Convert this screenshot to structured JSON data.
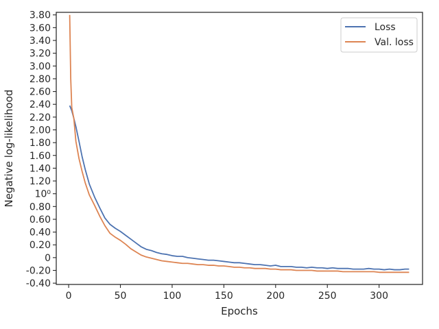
{
  "chart_data": {
    "type": "line",
    "xlabel": "Epochs",
    "ylabel": "Negative log-likelihood",
    "xlim": [
      -12,
      342
    ],
    "ylim": [
      -0.42,
      3.84
    ],
    "x_ticks": [
      {
        "value": 0,
        "label": "0"
      },
      {
        "value": 50,
        "label": "50"
      },
      {
        "value": 100,
        "label": "100"
      },
      {
        "value": 150,
        "label": "150"
      },
      {
        "value": 200,
        "label": "200"
      },
      {
        "value": 250,
        "label": "250"
      },
      {
        "value": 300,
        "label": "300"
      }
    ],
    "y_ticks": [
      {
        "value": -0.4,
        "label": "-0.40"
      },
      {
        "value": -0.2,
        "label": "-0.20"
      },
      {
        "value": 0.0,
        "label": "0"
      },
      {
        "value": 0.2,
        "label": "0.20"
      },
      {
        "value": 0.4,
        "label": "0.40"
      },
      {
        "value": 0.6,
        "label": "0.60"
      },
      {
        "value": 0.8,
        "label": "0.80"
      },
      {
        "value": 1.0,
        "label": "10⁰"
      },
      {
        "value": 1.2,
        "label": "1.20"
      },
      {
        "value": 1.4,
        "label": "1.40"
      },
      {
        "value": 1.6,
        "label": "1.60"
      },
      {
        "value": 1.8,
        "label": "1.80"
      },
      {
        "value": 2.0,
        "label": "2.00"
      },
      {
        "value": 2.2,
        "label": "2.20"
      },
      {
        "value": 2.4,
        "label": "2.40"
      },
      {
        "value": 2.6,
        "label": "2.60"
      },
      {
        "value": 2.8,
        "label": "2.80"
      },
      {
        "value": 3.0,
        "label": "3.00"
      },
      {
        "value": 3.2,
        "label": "3.20"
      },
      {
        "value": 3.4,
        "label": "3.40"
      },
      {
        "value": 3.6,
        "label": "3.60"
      },
      {
        "value": 3.8,
        "label": "3.80"
      }
    ],
    "grid": false,
    "legend_position": "top-right",
    "series": [
      {
        "name": "Loss",
        "color": "#4c72b0",
        "x": [
          1,
          3,
          5,
          7,
          10,
          13,
          16,
          20,
          25,
          30,
          35,
          40,
          45,
          50,
          55,
          60,
          65,
          70,
          75,
          80,
          85,
          90,
          95,
          100,
          105,
          110,
          115,
          120,
          125,
          130,
          135,
          140,
          145,
          150,
          155,
          160,
          165,
          170,
          175,
          180,
          185,
          190,
          195,
          200,
          205,
          210,
          215,
          220,
          225,
          230,
          235,
          240,
          245,
          250,
          255,
          260,
          265,
          270,
          275,
          280,
          285,
          290,
          295,
          300,
          305,
          310,
          315,
          320,
          325,
          329
        ],
        "y": [
          2.38,
          2.3,
          2.18,
          2.05,
          1.82,
          1.58,
          1.38,
          1.15,
          0.95,
          0.78,
          0.62,
          0.52,
          0.46,
          0.41,
          0.35,
          0.29,
          0.23,
          0.17,
          0.13,
          0.11,
          0.08,
          0.06,
          0.05,
          0.03,
          0.02,
          0.02,
          0.0,
          -0.01,
          -0.02,
          -0.03,
          -0.04,
          -0.04,
          -0.05,
          -0.06,
          -0.07,
          -0.08,
          -0.08,
          -0.09,
          -0.1,
          -0.11,
          -0.11,
          -0.12,
          -0.13,
          -0.12,
          -0.14,
          -0.14,
          -0.14,
          -0.15,
          -0.15,
          -0.16,
          -0.15,
          -0.16,
          -0.16,
          -0.17,
          -0.16,
          -0.17,
          -0.17,
          -0.17,
          -0.18,
          -0.18,
          -0.18,
          -0.17,
          -0.18,
          -0.18,
          -0.19,
          -0.18,
          -0.19,
          -0.19,
          -0.18,
          -0.18
        ]
      },
      {
        "name": "Val. loss",
        "color": "#dd8452",
        "x": [
          1,
          2,
          3,
          5,
          7,
          10,
          13,
          16,
          20,
          25,
          30,
          35,
          40,
          45,
          50,
          55,
          60,
          65,
          70,
          75,
          80,
          85,
          90,
          95,
          100,
          105,
          110,
          115,
          120,
          125,
          130,
          135,
          140,
          145,
          150,
          155,
          160,
          165,
          170,
          175,
          180,
          185,
          190,
          195,
          200,
          205,
          210,
          215,
          220,
          225,
          230,
          235,
          240,
          245,
          250,
          255,
          260,
          265,
          270,
          275,
          280,
          285,
          290,
          295,
          300,
          305,
          310,
          315,
          320,
          325,
          329
        ],
        "y": [
          3.8,
          2.8,
          2.35,
          2.18,
          1.82,
          1.55,
          1.35,
          1.17,
          0.98,
          0.82,
          0.65,
          0.5,
          0.38,
          0.32,
          0.27,
          0.21,
          0.14,
          0.09,
          0.04,
          0.01,
          -0.01,
          -0.03,
          -0.05,
          -0.06,
          -0.07,
          -0.08,
          -0.09,
          -0.09,
          -0.1,
          -0.11,
          -0.11,
          -0.12,
          -0.12,
          -0.13,
          -0.13,
          -0.14,
          -0.15,
          -0.15,
          -0.16,
          -0.16,
          -0.17,
          -0.17,
          -0.17,
          -0.18,
          -0.18,
          -0.19,
          -0.19,
          -0.19,
          -0.2,
          -0.2,
          -0.2,
          -0.2,
          -0.21,
          -0.21,
          -0.21,
          -0.21,
          -0.21,
          -0.22,
          -0.22,
          -0.22,
          -0.22,
          -0.22,
          -0.22,
          -0.22,
          -0.23,
          -0.23,
          -0.23,
          -0.23,
          -0.23,
          -0.23,
          -0.23
        ]
      }
    ]
  }
}
